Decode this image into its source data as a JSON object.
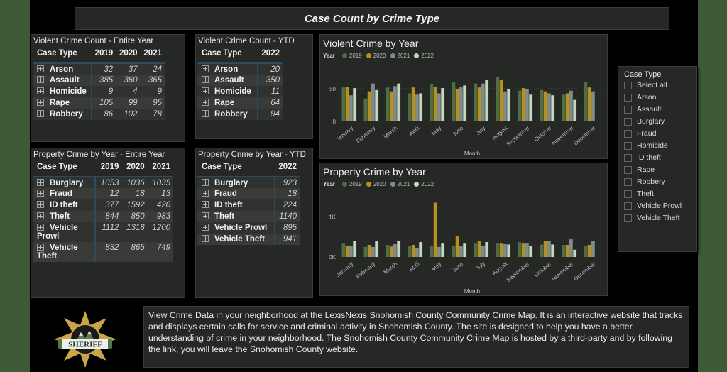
{
  "header": {
    "title": "Case Count by Crime Type"
  },
  "violent_entire": {
    "title": "Violent Crime Count - Entire Year",
    "columns": [
      "Case Type",
      "2019",
      "2020",
      "2021"
    ],
    "rows": [
      {
        "type": "Arson",
        "values": [
          "32",
          "37",
          "24"
        ]
      },
      {
        "type": "Assault",
        "values": [
          "385",
          "360",
          "365"
        ]
      },
      {
        "type": "Homicide",
        "values": [
          "9",
          "4",
          "9"
        ]
      },
      {
        "type": "Rape",
        "values": [
          "105",
          "99",
          "95"
        ]
      },
      {
        "type": "Robbery",
        "values": [
          "86",
          "102",
          "78"
        ]
      }
    ]
  },
  "violent_ytd": {
    "title": "Violent Crime Count - YTD",
    "columns": [
      "Case Type",
      "2022"
    ],
    "rows": [
      {
        "type": "Arson",
        "values": [
          "20"
        ]
      },
      {
        "type": "Assault",
        "values": [
          "350"
        ]
      },
      {
        "type": "Homicide",
        "values": [
          "11"
        ]
      },
      {
        "type": "Rape",
        "values": [
          "64"
        ]
      },
      {
        "type": "Robbery",
        "values": [
          "94"
        ]
      }
    ]
  },
  "property_entire": {
    "title": "Property Crime by Year - Entire Year",
    "columns": [
      "Case Type",
      "2019",
      "2020",
      "2021"
    ],
    "rows": [
      {
        "type": "Burglary",
        "values": [
          "1053",
          "1036",
          "1035"
        ]
      },
      {
        "type": "Fraud",
        "values": [
          "12",
          "18",
          "13"
        ]
      },
      {
        "type": "ID theft",
        "values": [
          "377",
          "1592",
          "420"
        ]
      },
      {
        "type": "Theft",
        "values": [
          "844",
          "850",
          "983"
        ]
      },
      {
        "type": "Vehicle Prowl",
        "values": [
          "1112",
          "1318",
          "1200"
        ]
      },
      {
        "type": "Vehicle Theft",
        "values": [
          "832",
          "865",
          "749"
        ]
      }
    ]
  },
  "property_ytd": {
    "title": "Property Crime by Year - YTD",
    "columns": [
      "Case Type",
      "2022"
    ],
    "rows": [
      {
        "type": "Burglary",
        "values": [
          "923"
        ]
      },
      {
        "type": "Fraud",
        "values": [
          "18"
        ]
      },
      {
        "type": "ID theft",
        "values": [
          "224"
        ]
      },
      {
        "type": "Theft",
        "values": [
          "1140"
        ]
      },
      {
        "type": "Vehicle Prowl",
        "values": [
          "895"
        ]
      },
      {
        "type": "Vehicle Theft",
        "values": [
          "941"
        ]
      }
    ]
  },
  "slicer": {
    "title": "Case Type",
    "items": [
      "Select all",
      "Arson",
      "Assault",
      "Burglary",
      "Fraud",
      "Homicide",
      "ID theft",
      "Rape",
      "Robbery",
      "Theft",
      "Vehicle Prowl",
      "Vehicle Theft"
    ]
  },
  "info": {
    "text_before": "View Crime Data in your neighborhood at the LexisNexis ",
    "link_text": "Snohomish County Community Crime Map",
    "text_after": ". It is an interactive website that tracks and displays certain calls for service and criminal activity in Snohomish County. The site is designed to help you have a better understanding of crime in your neighborhood. The Snohomish County Community Crime Map is hosted by a third-party and by following the link, you will leave the Snohomish County website."
  },
  "logo": {
    "text": "SHERIFF"
  },
  "colors": {
    "2019": "#4e6e45",
    "2020": "#b8901a",
    "2021": "#7f8c8d",
    "2022": "#c5d8bf",
    "panel": "#252825",
    "band": "#3f5a37"
  },
  "chart_data": [
    {
      "type": "bar",
      "title": "Violent Crime by Year",
      "legend_title": "Year",
      "legend": "top-left",
      "xlabel": "Month",
      "ylabel": "",
      "ylim": [
        0,
        75
      ],
      "yticks": [
        {
          "value": 0,
          "label": "0"
        },
        {
          "value": 50,
          "label": "50"
        }
      ],
      "categories": [
        "January",
        "February",
        "March",
        "April",
        "May",
        "June",
        "July",
        "August",
        "September",
        "October",
        "November",
        "December"
      ],
      "series": [
        {
          "name": "2019",
          "values": [
            52,
            35,
            52,
            43,
            57,
            60,
            58,
            68,
            47,
            48,
            41,
            61
          ]
        },
        {
          "name": "2020",
          "values": [
            53,
            46,
            46,
            52,
            53,
            49,
            52,
            63,
            51,
            46,
            43,
            52
          ]
        },
        {
          "name": "2021",
          "values": [
            40,
            58,
            54,
            41,
            43,
            52,
            58,
            46,
            49,
            43,
            47,
            46
          ]
        },
        {
          "name": "2022",
          "values": [
            51,
            48,
            58,
            43,
            51,
            55,
            64,
            50,
            41,
            40,
            33,
            null
          ]
        }
      ]
    },
    {
      "type": "bar",
      "title": "Property Crime by Year",
      "legend_title": "Year",
      "legend": "top-left",
      "xlabel": "Month",
      "ylabel": "",
      "ylim": [
        0,
        1500
      ],
      "yticks": [
        {
          "value": 0,
          "label": "0K"
        },
        {
          "value": 1000,
          "label": "1K"
        }
      ],
      "categories": [
        "January",
        "February",
        "March",
        "April",
        "May",
        "June",
        "July",
        "August",
        "September",
        "October",
        "November",
        "December"
      ],
      "series": [
        {
          "name": "2019",
          "values": [
            350,
            250,
            300,
            280,
            280,
            280,
            350,
            350,
            370,
            310,
            300,
            280
          ]
        },
        {
          "name": "2020",
          "values": [
            280,
            300,
            260,
            300,
            1350,
            510,
            390,
            350,
            350,
            390,
            300,
            300
          ]
        },
        {
          "name": "2021",
          "values": [
            280,
            250,
            320,
            230,
            250,
            280,
            280,
            330,
            350,
            390,
            440,
            390
          ]
        },
        {
          "name": "2022",
          "values": [
            400,
            390,
            390,
            370,
            350,
            350,
            370,
            310,
            280,
            310,
            180,
            null
          ]
        }
      ]
    }
  ]
}
